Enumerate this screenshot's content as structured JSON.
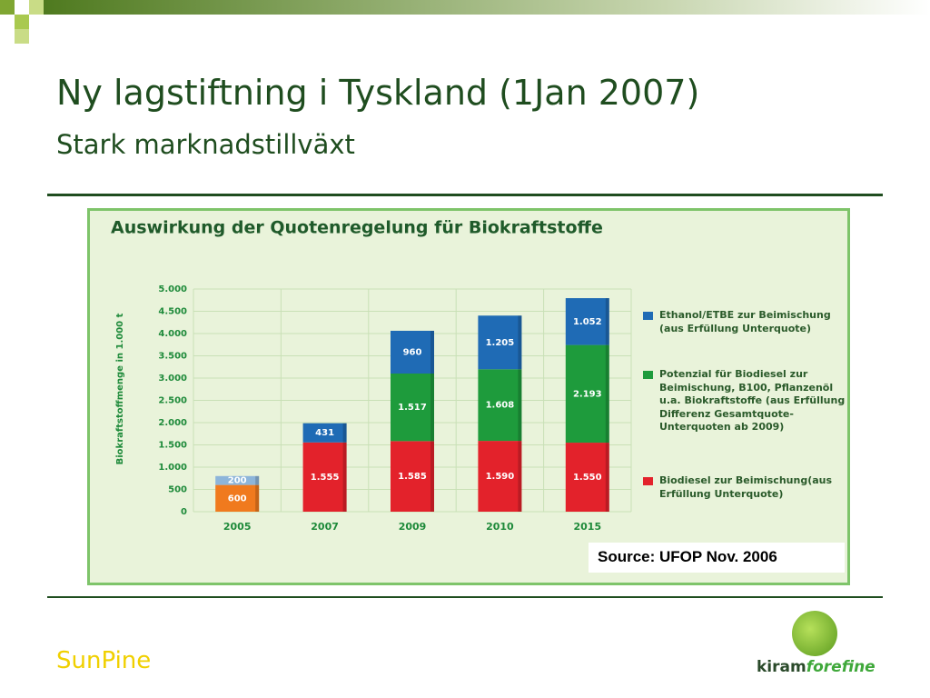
{
  "slide": {
    "title": "Ny lagstiftning i Tyskland (1Jan 2007)",
    "subtitle": "Stark marknadstillväxt",
    "source": "Source: UFOP Nov. 2006",
    "footer": "SunPine",
    "logo_part1": "kiram",
    "logo_part2": "forefine"
  },
  "chart_data": {
    "type": "stacked_bar",
    "title": "Auswirkung der Quotenregelung für Biokraftstoffe",
    "ylabel": "Biokraftstoffmenge in 1.000 t",
    "categories": [
      "2005",
      "2007",
      "2009",
      "2010",
      "2015"
    ],
    "series": [
      {
        "name": "Biodiesel zur Beimischung(aus Erfüllung Unterquote)",
        "color": "#e3222b",
        "colors": [
          "#f07a1e",
          "#e3222b",
          "#e3222b",
          "#e3222b",
          "#e3222b"
        ],
        "values": [
          600,
          1555,
          1585,
          1590,
          1550
        ],
        "value_labels": [
          "600",
          "1.555",
          "1.585",
          "1.590",
          "1.550"
        ]
      },
      {
        "name": "Potenzial für Biodiesel zur Beimischung, B100, Pflanzenöl u.a. Biokraftstoffe (aus Erfüllung Differenz Gesamtquote-Unterquoten ab 2009)",
        "color": "#1e9b3c",
        "values": [
          null,
          null,
          1517,
          1608,
          2193
        ],
        "value_labels": [
          null,
          null,
          "1.517",
          "1.608",
          "2.193"
        ]
      },
      {
        "name": "Ethanol/ETBE zur Beimischung (aus Erfüllung Unterquote)",
        "color": "#1f6bb5",
        "colors": [
          "#8db5da",
          "#1f6bb5",
          "#1f6bb5",
          "#1f6bb5",
          "#1f6bb5"
        ],
        "values": [
          200,
          431,
          960,
          1205,
          1052
        ],
        "value_labels": [
          "200",
          "431",
          "960",
          "1.205",
          "1.052"
        ]
      }
    ],
    "legend_order": [
      2,
      1,
      0
    ],
    "ylim": [
      0,
      5000
    ],
    "yticks": [
      0,
      500,
      {
        "value": 1000,
        "label": "1.000"
      },
      {
        "value": 1500,
        "label": "1.500"
      },
      {
        "value": 2000,
        "label": "2.000"
      },
      {
        "value": 2500,
        "label": "2.500"
      },
      {
        "value": 3000,
        "label": "3.000"
      },
      {
        "value": 3500,
        "label": "3.500"
      },
      {
        "value": 4000,
        "label": "4.000"
      },
      {
        "value": 4500,
        "label": "4.500"
      },
      {
        "value": 5000,
        "label": "5.000"
      }
    ],
    "grid": true
  }
}
